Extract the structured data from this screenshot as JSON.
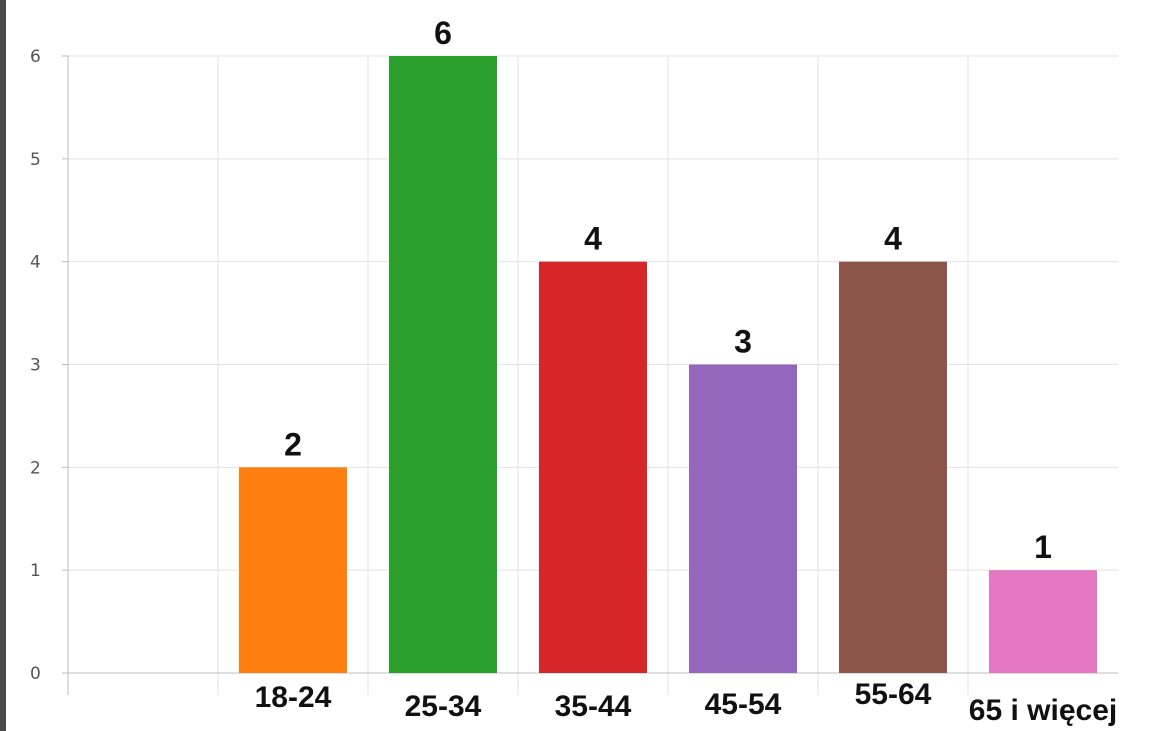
{
  "chart_data": {
    "type": "bar",
    "categories": [
      "",
      "18-24",
      "25-34",
      "35-44",
      "45-54",
      "55-64",
      "65 i więcej"
    ],
    "values": [
      0,
      2,
      6,
      4,
      3,
      4,
      1
    ],
    "colors": [
      "#1f77b4",
      "#ff7f0e",
      "#2ca02c",
      "#d62728",
      "#9467bd",
      "#8c564b",
      "#e377c2"
    ],
    "data_labels": [
      "",
      "2",
      "6",
      "4",
      "3",
      "4",
      "1"
    ],
    "y_ticks": [
      "0",
      "1",
      "2",
      "3",
      "4",
      "5",
      "6"
    ],
    "ylim": [
      0,
      6
    ],
    "title": "",
    "xlabel": "",
    "ylabel": "",
    "grid": true,
    "legend": "none"
  }
}
